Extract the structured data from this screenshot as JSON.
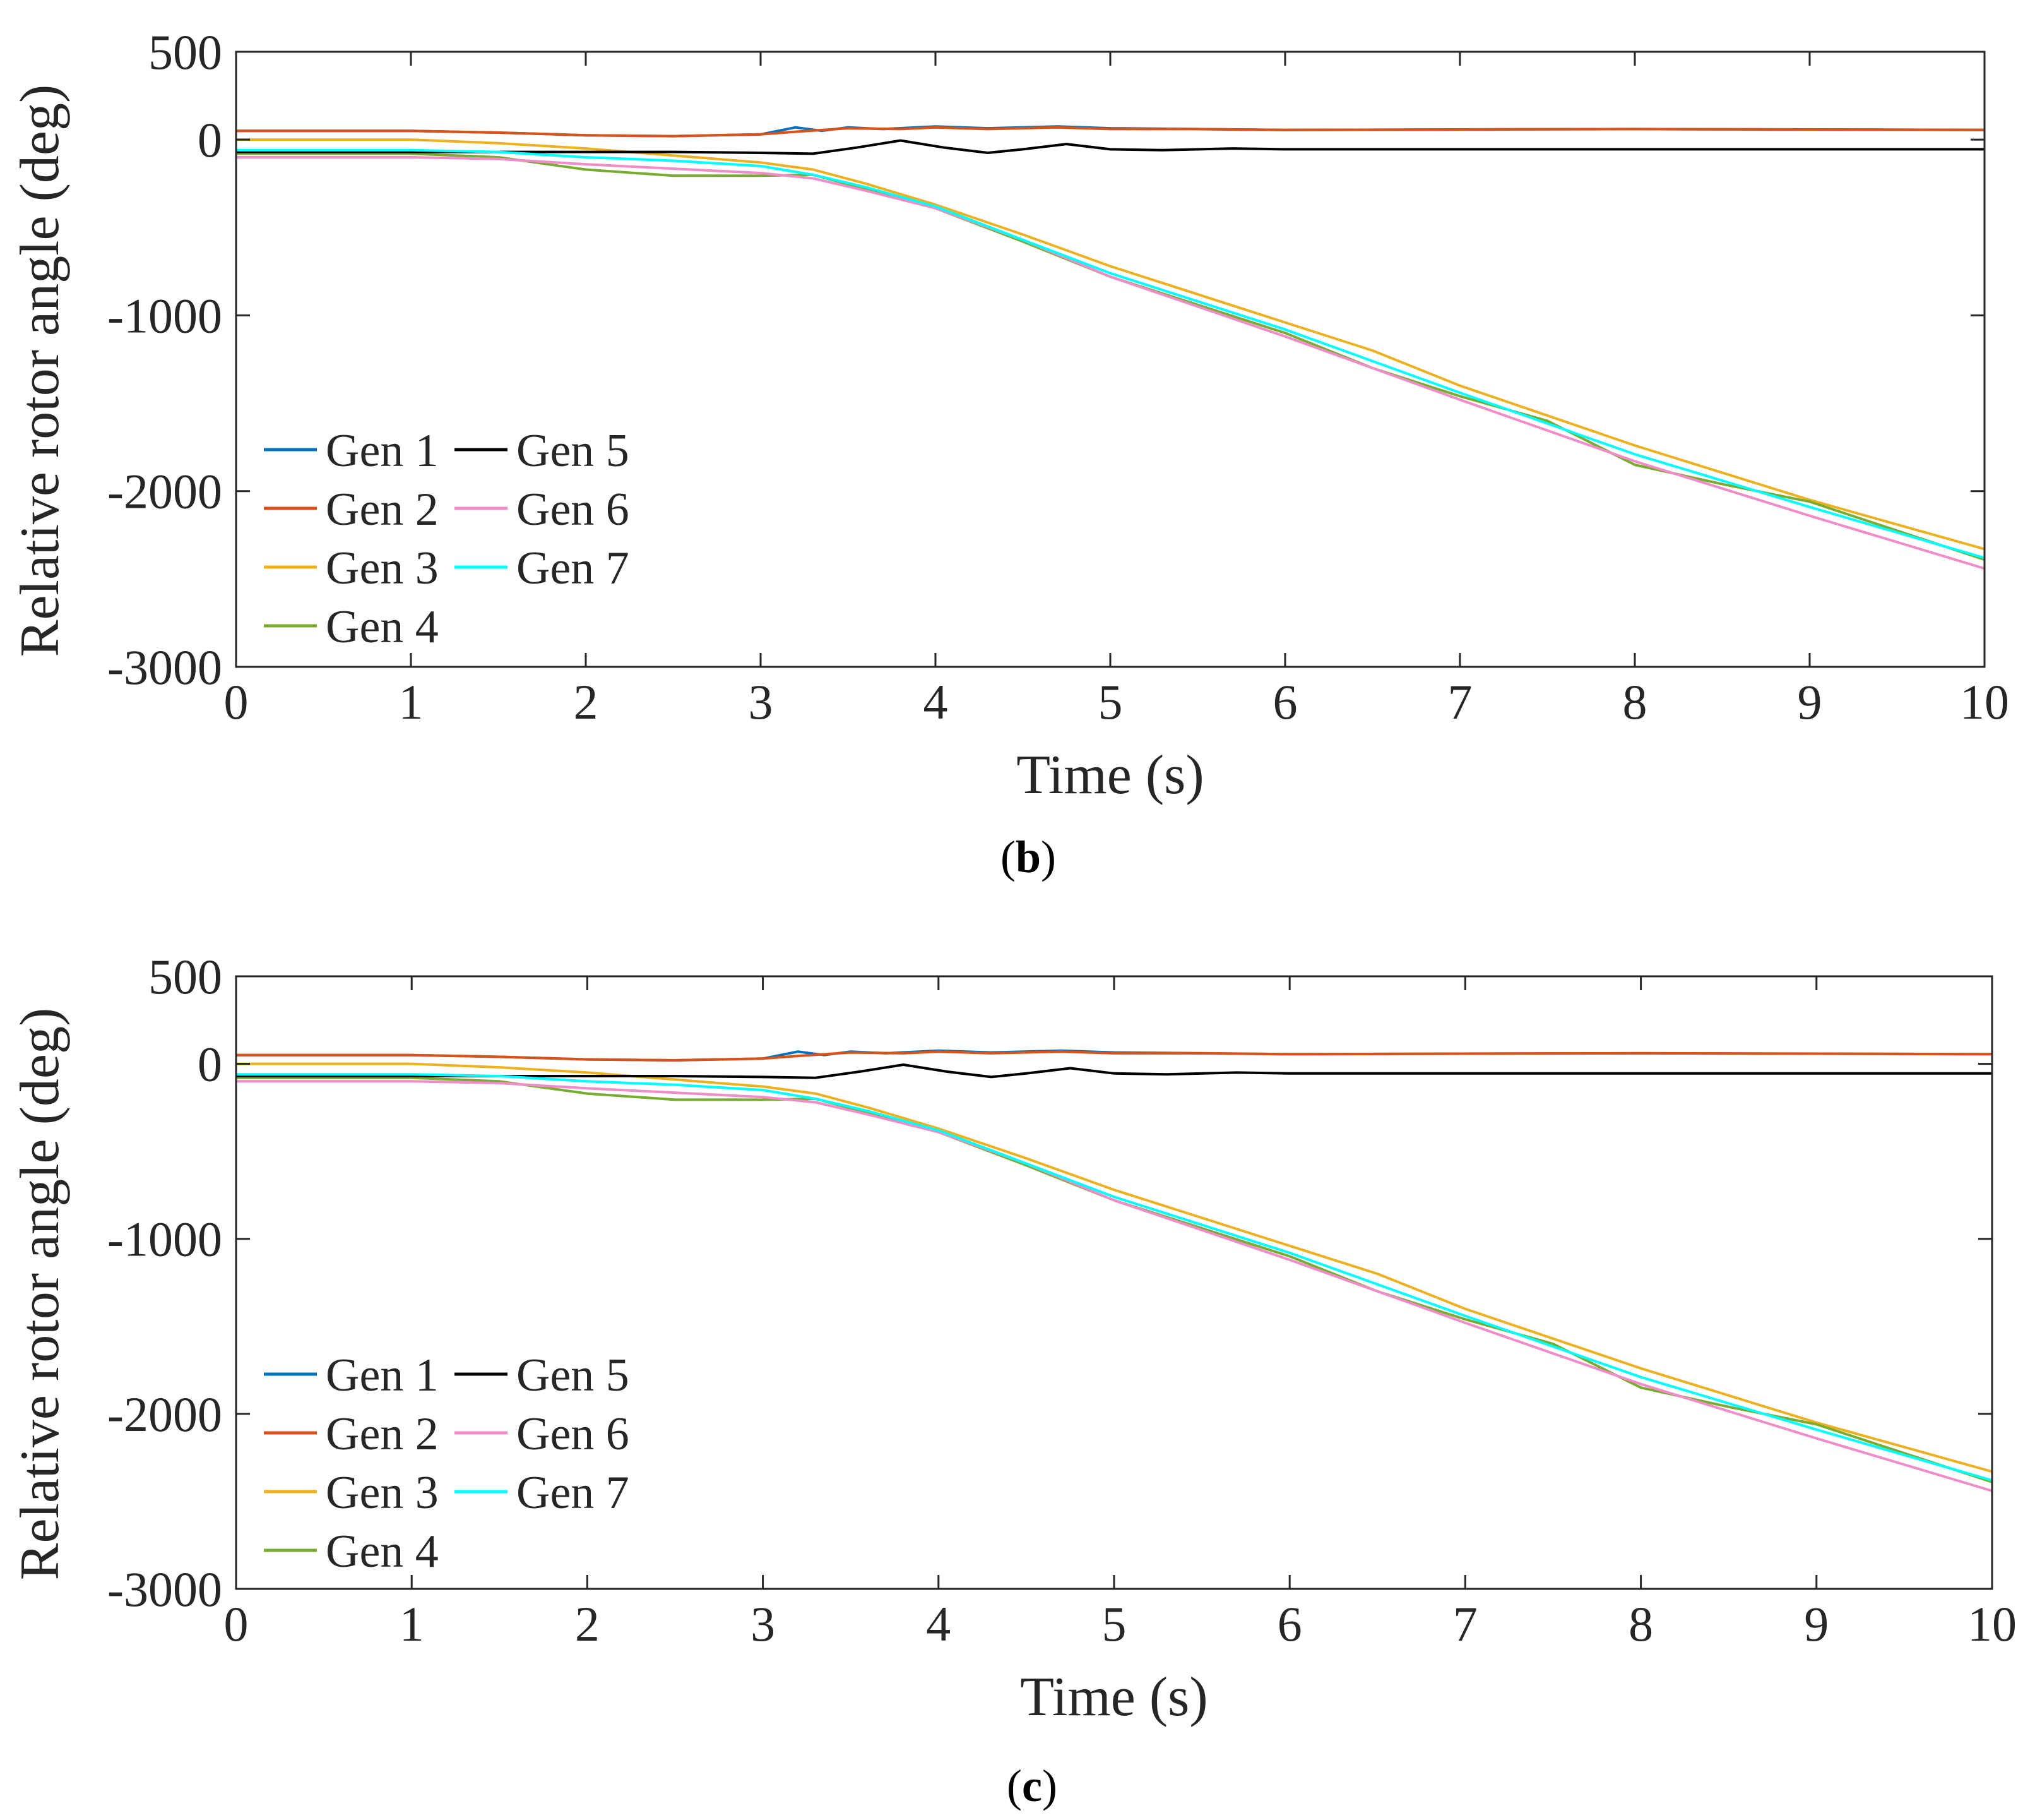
{
  "chart_data": [
    {
      "type": "line",
      "panel": "b",
      "caption": {
        "open": "(",
        "letter": "b",
        "close": ")"
      },
      "xlabel": "Time (s)",
      "ylabel": "Relative rotor angle (deg)",
      "xlim": [
        0,
        10
      ],
      "ylim": [
        -3000,
        500
      ],
      "xticks": [
        "0",
        "1",
        "2",
        "3",
        "4",
        "5",
        "6",
        "7",
        "8",
        "9",
        "10"
      ],
      "yticks": [
        "500",
        "0",
        "-1000",
        "-2000",
        "-3000"
      ],
      "ytick_values": [
        500,
        0,
        -1000,
        -2000,
        -3000
      ],
      "grid": false,
      "legend_position": "bottom-left",
      "series": [
        {
          "name": "Gen 1",
          "color": "#0072BD",
          "x": [
            0,
            1,
            1.5,
            2,
            2.5,
            3,
            3.2,
            3.35,
            3.5,
            3.7,
            4,
            4.3,
            4.7,
            5,
            5.5,
            6,
            7,
            8,
            9,
            10
          ],
          "y": [
            50,
            50,
            40,
            25,
            20,
            30,
            70,
            50,
            70,
            60,
            75,
            65,
            75,
            65,
            60,
            55,
            58,
            60,
            58,
            55
          ]
        },
        {
          "name": "Gen 2",
          "color": "#D95319",
          "x": [
            0,
            1,
            1.5,
            2,
            2.5,
            3,
            3.2,
            3.5,
            3.8,
            4,
            4.3,
            4.7,
            5,
            5.5,
            6,
            7,
            8,
            9,
            10
          ],
          "y": [
            50,
            50,
            40,
            25,
            20,
            30,
            45,
            65,
            60,
            70,
            60,
            70,
            60,
            60,
            55,
            58,
            60,
            58,
            55
          ]
        },
        {
          "name": "Gen 3",
          "color": "#EDB120",
          "x": [
            0,
            1,
            1.5,
            2,
            2.5,
            3,
            3.3,
            3.6,
            4,
            4.5,
            5,
            6,
            6.5,
            7,
            8,
            9,
            10
          ],
          "y": [
            0,
            0,
            -20,
            -50,
            -90,
            -130,
            -170,
            -250,
            -370,
            -540,
            -720,
            -1040,
            -1200,
            -1400,
            -1740,
            -2050,
            -2330
          ]
        },
        {
          "name": "Gen 4",
          "color": "#77AC30",
          "x": [
            0,
            1,
            1.5,
            2,
            2.5,
            3,
            3.3,
            3.6,
            4,
            4.5,
            5,
            6,
            6.5,
            7,
            7.5,
            8,
            8.5,
            9,
            10
          ],
          "y": [
            -80,
            -80,
            -100,
            -170,
            -205,
            -205,
            -200,
            -280,
            -390,
            -580,
            -780,
            -1100,
            -1300,
            -1460,
            -1600,
            -1850,
            -1960,
            -2060,
            -2390
          ]
        },
        {
          "name": "Gen 5",
          "color": "#000000",
          "x": [
            0,
            1,
            2,
            2.5,
            3,
            3.3,
            3.55,
            3.8,
            4.05,
            4.3,
            4.5,
            4.75,
            5,
            5.3,
            5.7,
            6,
            7,
            8,
            9,
            10
          ],
          "y": [
            -70,
            -70,
            -70,
            -70,
            -75,
            -80,
            -45,
            -5,
            -45,
            -75,
            -55,
            -25,
            -55,
            -60,
            -50,
            -55,
            -55,
            -55,
            -55,
            -55
          ]
        },
        {
          "name": "Gen 6",
          "color": "#F08CC8",
          "x": [
            0,
            1,
            1.5,
            2,
            2.5,
            3,
            3.3,
            3.6,
            4,
            4.5,
            5,
            6,
            7,
            8,
            9,
            10
          ],
          "y": [
            -100,
            -100,
            -110,
            -140,
            -165,
            -190,
            -220,
            -290,
            -390,
            -570,
            -780,
            -1120,
            -1480,
            -1830,
            -2140,
            -2440
          ]
        },
        {
          "name": "Gen 7",
          "color": "#00FFFF",
          "x": [
            0,
            1,
            1.5,
            2,
            2.5,
            3,
            3.3,
            3.6,
            4,
            4.5,
            5,
            6,
            7,
            8,
            9,
            10
          ],
          "y": [
            -60,
            -60,
            -70,
            -100,
            -120,
            -150,
            -200,
            -270,
            -380,
            -570,
            -760,
            -1080,
            -1440,
            -1790,
            -2090,
            -2380
          ]
        }
      ]
    },
    {
      "type": "line",
      "panel": "c",
      "caption": {
        "open": "(",
        "letter": "c",
        "close": ")"
      },
      "xlabel": "Time (s)",
      "ylabel": "Relative rotor angle (deg)",
      "xlim": [
        0,
        10
      ],
      "ylim": [
        -3000,
        500
      ],
      "xticks": [
        "0",
        "1",
        "2",
        "3",
        "4",
        "5",
        "6",
        "7",
        "8",
        "9",
        "10"
      ],
      "yticks": [
        "500",
        "0",
        "-1000",
        "-2000",
        "-3000"
      ],
      "ytick_values": [
        500,
        0,
        -1000,
        -2000,
        -3000
      ],
      "grid": false,
      "legend_position": "bottom-left",
      "series": [
        {
          "name": "Gen 1",
          "color": "#0072BD",
          "x": [
            0,
            1,
            1.5,
            2,
            2.5,
            3,
            3.2,
            3.35,
            3.5,
            3.7,
            4,
            4.3,
            4.7,
            5,
            5.5,
            6,
            7,
            8,
            9,
            10
          ],
          "y": [
            50,
            50,
            40,
            25,
            20,
            30,
            70,
            50,
            70,
            60,
            75,
            65,
            75,
            65,
            60,
            55,
            58,
            60,
            58,
            55
          ]
        },
        {
          "name": "Gen 2",
          "color": "#D95319",
          "x": [
            0,
            1,
            1.5,
            2,
            2.5,
            3,
            3.2,
            3.5,
            3.8,
            4,
            4.3,
            4.7,
            5,
            5.5,
            6,
            7,
            8,
            9,
            10
          ],
          "y": [
            50,
            50,
            40,
            25,
            20,
            30,
            45,
            65,
            60,
            70,
            60,
            70,
            60,
            60,
            55,
            58,
            60,
            58,
            55
          ]
        },
        {
          "name": "Gen 3",
          "color": "#EDB120",
          "x": [
            0,
            1,
            1.5,
            2,
            2.5,
            3,
            3.3,
            3.6,
            4,
            4.5,
            5,
            6,
            6.5,
            7,
            8,
            9,
            10
          ],
          "y": [
            0,
            0,
            -20,
            -50,
            -90,
            -130,
            -170,
            -250,
            -370,
            -540,
            -720,
            -1040,
            -1200,
            -1400,
            -1740,
            -2050,
            -2330
          ]
        },
        {
          "name": "Gen 4",
          "color": "#77AC30",
          "x": [
            0,
            1,
            1.5,
            2,
            2.5,
            3,
            3.3,
            3.6,
            4,
            4.5,
            5,
            6,
            6.5,
            7,
            7.5,
            8,
            8.5,
            9,
            10
          ],
          "y": [
            -80,
            -80,
            -100,
            -170,
            -205,
            -205,
            -200,
            -280,
            -390,
            -580,
            -780,
            -1100,
            -1300,
            -1460,
            -1600,
            -1850,
            -1960,
            -2060,
            -2390
          ]
        },
        {
          "name": "Gen 5",
          "color": "#000000",
          "x": [
            0,
            1,
            2,
            2.5,
            3,
            3.3,
            3.55,
            3.8,
            4.05,
            4.3,
            4.5,
            4.75,
            5,
            5.3,
            5.7,
            6,
            7,
            8,
            9,
            10
          ],
          "y": [
            -70,
            -70,
            -70,
            -70,
            -75,
            -80,
            -45,
            -5,
            -45,
            -75,
            -55,
            -25,
            -55,
            -60,
            -50,
            -55,
            -55,
            -55,
            -55,
            -55
          ]
        },
        {
          "name": "Gen 6",
          "color": "#F08CC8",
          "x": [
            0,
            1,
            1.5,
            2,
            2.5,
            3,
            3.3,
            3.6,
            4,
            4.5,
            5,
            6,
            7,
            8,
            9,
            10
          ],
          "y": [
            -100,
            -100,
            -110,
            -140,
            -165,
            -190,
            -220,
            -290,
            -390,
            -570,
            -780,
            -1120,
            -1480,
            -1830,
            -2140,
            -2440
          ]
        },
        {
          "name": "Gen 7",
          "color": "#00FFFF",
          "x": [
            0,
            1,
            1.5,
            2,
            2.5,
            3,
            3.3,
            3.6,
            4,
            4.5,
            5,
            6,
            7,
            8,
            9,
            10
          ],
          "y": [
            -60,
            -60,
            -70,
            -100,
            -120,
            -150,
            -200,
            -270,
            -380,
            -570,
            -760,
            -1080,
            -1440,
            -1790,
            -2090,
            -2380
          ]
        }
      ]
    }
  ]
}
